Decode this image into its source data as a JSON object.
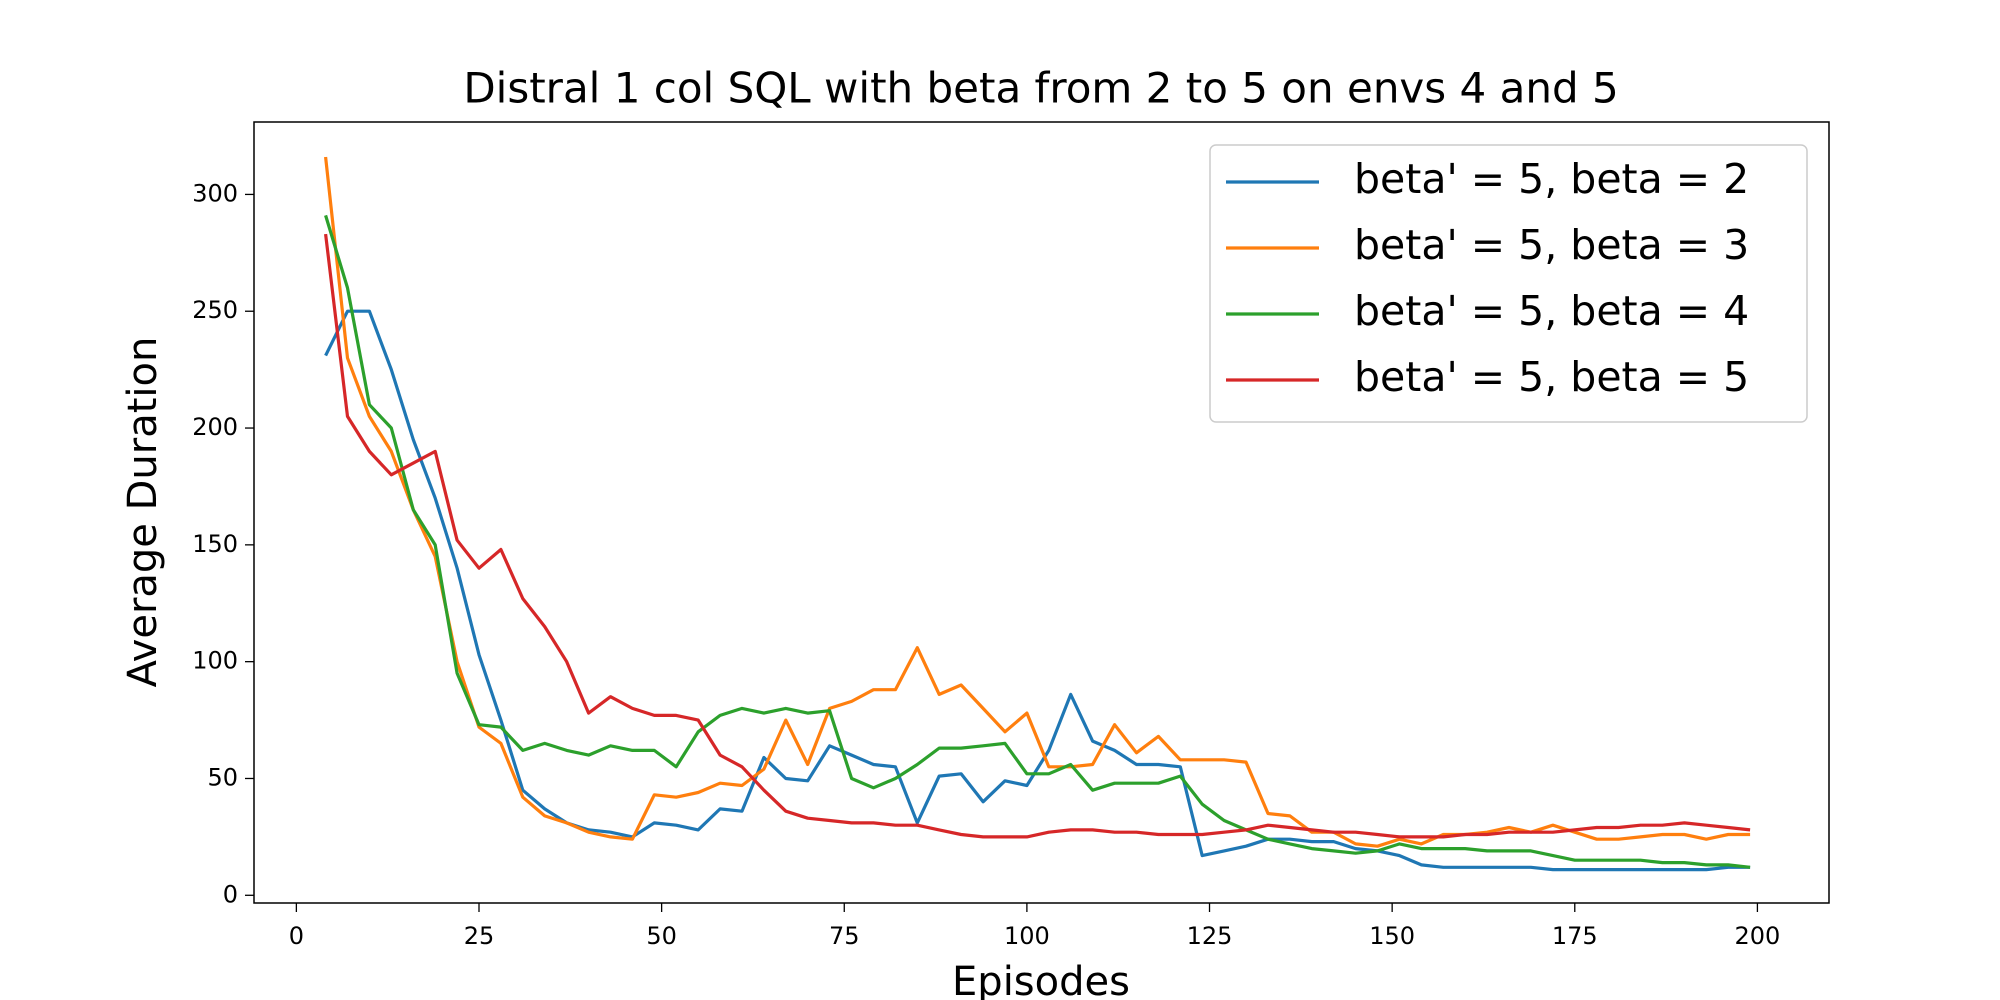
{
  "chart_data": {
    "type": "line",
    "title": "Distral 1 col SQL with beta from 2 to 5 on envs 4 and 5",
    "xlabel": "Episodes",
    "ylabel": "Average Duration",
    "x": [
      4,
      7,
      10,
      13,
      16,
      19,
      22,
      25,
      28,
      31,
      34,
      37,
      40,
      43,
      46,
      49,
      52,
      55,
      58,
      61,
      64,
      67,
      70,
      73,
      76,
      79,
      82,
      85,
      88,
      91,
      94,
      97,
      100,
      103,
      106,
      109,
      112,
      115,
      118,
      121,
      124,
      127,
      130,
      133,
      136,
      139,
      142,
      145,
      148,
      151,
      154,
      157,
      160,
      163,
      166,
      169,
      172,
      175,
      178,
      181,
      184,
      187,
      190,
      193,
      196,
      199
    ],
    "series": [
      {
        "name": "beta' = 5, beta = 2",
        "color": "#1f77b4",
        "values": [
          231,
          250,
          250,
          225,
          195,
          170,
          140,
          103,
          75,
          45,
          37,
          31,
          28,
          27,
          25,
          31,
          30,
          28,
          37,
          36,
          59,
          50,
          49,
          64,
          60,
          56,
          55,
          31,
          51,
          52,
          40,
          49,
          47,
          62,
          86,
          66,
          62,
          56,
          56,
          55,
          17,
          19,
          21,
          24,
          24,
          23,
          23,
          20,
          19,
          17,
          13,
          12,
          12,
          12,
          12,
          12,
          11,
          11,
          11,
          11,
          11,
          11,
          11,
          11,
          12,
          12
        ]
      },
      {
        "name": "beta' = 5, beta = 3",
        "color": "#ff7f0e",
        "values": [
          316,
          230,
          205,
          190,
          165,
          145,
          100,
          72,
          65,
          42,
          34,
          31,
          27,
          25,
          24,
          43,
          42,
          44,
          48,
          47,
          54,
          75,
          56,
          80,
          83,
          88,
          88,
          106,
          86,
          90,
          80,
          70,
          78,
          55,
          55,
          56,
          73,
          61,
          68,
          58,
          58,
          58,
          57,
          35,
          34,
          27,
          27,
          22,
          21,
          24,
          22,
          26,
          26,
          27,
          29,
          27,
          30,
          27,
          24,
          24,
          25,
          26,
          26,
          24,
          26,
          26
        ]
      },
      {
        "name": "beta' = 5, beta = 4",
        "color": "#2ca02c",
        "values": [
          291,
          260,
          210,
          200,
          165,
          150,
          95,
          73,
          72,
          62,
          65,
          62,
          60,
          64,
          62,
          62,
          55,
          70,
          77,
          80,
          78,
          80,
          78,
          79,
          50,
          46,
          50,
          56,
          63,
          63,
          64,
          65,
          52,
          52,
          56,
          45,
          48,
          48,
          48,
          51,
          39,
          32,
          28,
          24,
          22,
          20,
          19,
          18,
          19,
          22,
          20,
          20,
          20,
          19,
          19,
          19,
          17,
          15,
          15,
          15,
          15,
          14,
          14,
          13,
          13,
          12
        ]
      },
      {
        "name": "beta' = 5, beta = 5",
        "color": "#d62728",
        "values": [
          283,
          205,
          190,
          180,
          185,
          190,
          152,
          140,
          148,
          127,
          115,
          100,
          78,
          85,
          80,
          77,
          77,
          75,
          60,
          55,
          45,
          36,
          33,
          32,
          31,
          31,
          30,
          30,
          28,
          26,
          25,
          25,
          25,
          27,
          28,
          28,
          27,
          27,
          26,
          26,
          26,
          27,
          28,
          30,
          29,
          28,
          27,
          27,
          26,
          25,
          25,
          25,
          26,
          26,
          27,
          27,
          27,
          28,
          29,
          29,
          30,
          30,
          31,
          30,
          29,
          28
        ]
      }
    ],
    "xlim": [
      -5.8,
      209.8
    ],
    "xticks": [
      0,
      25,
      50,
      75,
      100,
      125,
      150,
      175,
      200
    ],
    "ylim": [
      -3.3,
      331
    ],
    "yticks": [
      0,
      50,
      100,
      150,
      200,
      250,
      300
    ],
    "grid": false,
    "legend": "upper right"
  }
}
